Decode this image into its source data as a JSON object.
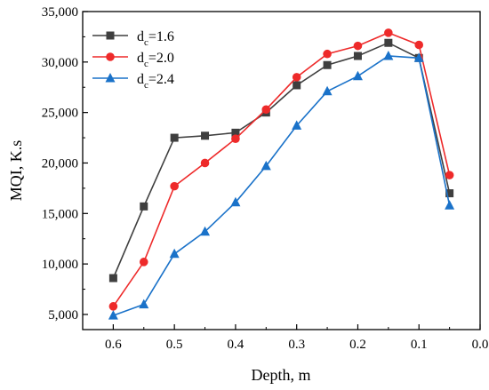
{
  "chart_data": {
    "type": "line",
    "xlabel": "Depth, m",
    "ylabel": "MQI, K.s",
    "x_reversed": true,
    "xlim": [
      0.0,
      0.65
    ],
    "ylim": [
      3500,
      35000
    ],
    "x_ticks": [
      0.6,
      0.5,
      0.4,
      0.3,
      0.2,
      0.1,
      0.0
    ],
    "x_tick_labels": [
      "0.6",
      "0.5",
      "0.4",
      "0.3",
      "0.2",
      "0.1",
      "0.0"
    ],
    "y_ticks": [
      5000,
      10000,
      15000,
      20000,
      25000,
      30000,
      35000
    ],
    "y_tick_labels": [
      "5,000",
      "10,000",
      "15,000",
      "20,000",
      "25,000",
      "30,000",
      "35,000"
    ],
    "grid": false,
    "legend_position": "top-left",
    "x": [
      0.6,
      0.55,
      0.5,
      0.45,
      0.4,
      0.35,
      0.3,
      0.25,
      0.2,
      0.15,
      0.1,
      0.05
    ],
    "series": [
      {
        "name": "dc=1.6",
        "name_main": "d",
        "name_sub": "c",
        "name_rest": "=1.6",
        "color": "#3f3f3f",
        "marker": "square",
        "values": [
          8600,
          15700,
          22500,
          22700,
          23000,
          25000,
          27700,
          29700,
          30600,
          31900,
          30400,
          17000
        ]
      },
      {
        "name": "dc=2.0",
        "name_main": "d",
        "name_sub": "c",
        "name_rest": "=2.0",
        "color": "#ee2a2a",
        "marker": "circle",
        "values": [
          5800,
          10200,
          17700,
          20000,
          22400,
          25300,
          28500,
          30800,
          31600,
          32900,
          31700,
          18800
        ]
      },
      {
        "name": "dc=2.4",
        "name_main": "d",
        "name_sub": "c",
        "name_rest": "=2.4",
        "color": "#1a72c9",
        "marker": "triangle",
        "values": [
          4900,
          6000,
          11000,
          13200,
          16100,
          19700,
          23700,
          27100,
          28600,
          30600,
          30400,
          15800
        ]
      }
    ]
  }
}
